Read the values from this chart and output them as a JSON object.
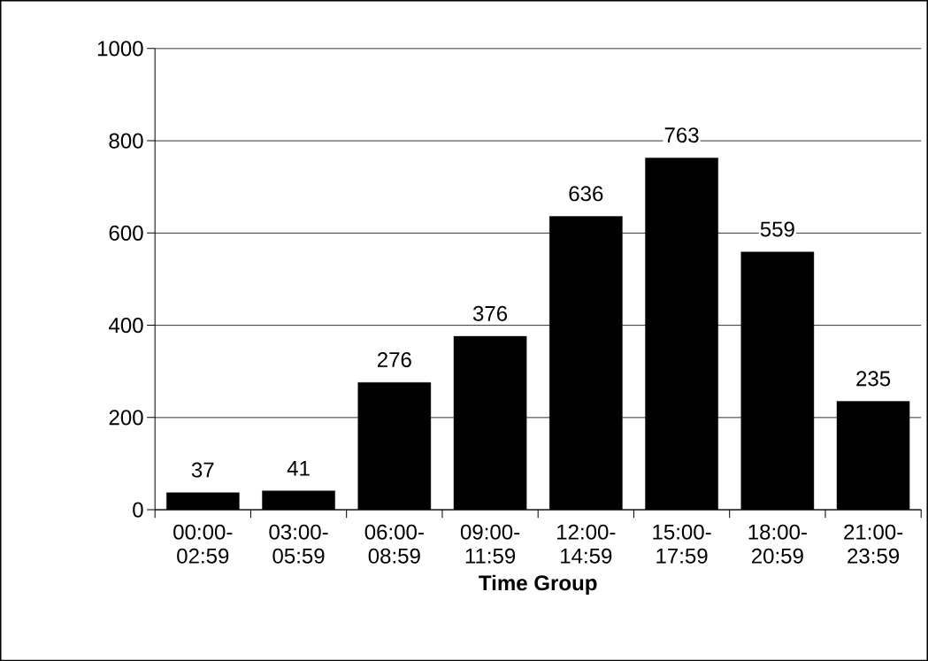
{
  "chart_data": {
    "type": "bar",
    "xlabel": "Time Group",
    "categories": [
      "00:00-02:59",
      "03:00-05:59",
      "06:00-08:59",
      "09:00-11:59",
      "12:00-14:59",
      "15:00-17:59",
      "18:00-20:59",
      "21:00-23:59"
    ],
    "values": [
      37,
      41,
      276,
      376,
      636,
      763,
      559,
      235
    ],
    "color": "#000000",
    "ylim": [
      0,
      1000
    ],
    "yticks": [
      0,
      200,
      400,
      600,
      800,
      1000
    ],
    "grid": "y",
    "data_labels": true
  }
}
